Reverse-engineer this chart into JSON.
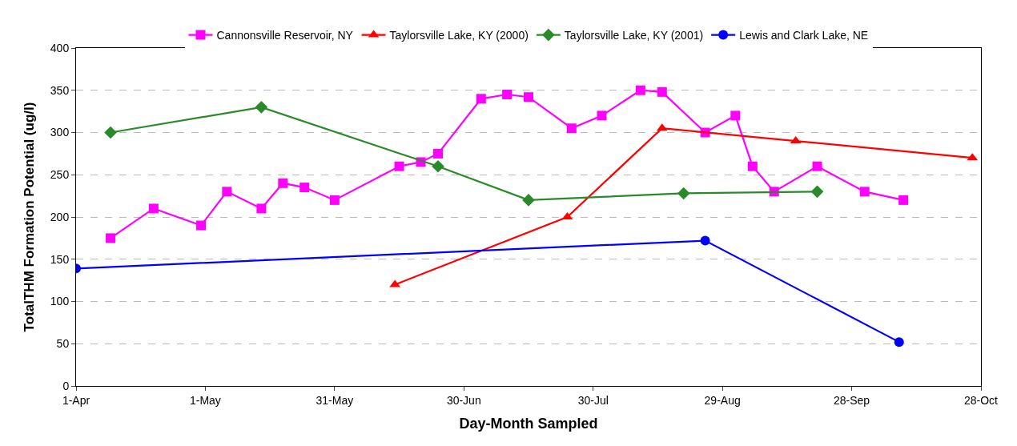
{
  "chart_data": {
    "type": "line",
    "xlabel": "Day-Month Sampled",
    "ylabel": "TotalTHM Formation Potential (ug/l)",
    "xlim": [
      "--04-01",
      "--10-28"
    ],
    "xticks": [
      {
        "value": "--04-01",
        "label": "1-Apr"
      },
      {
        "value": "--05-01",
        "label": "1-May"
      },
      {
        "value": "--05-31",
        "label": "31-May"
      },
      {
        "value": "--06-30",
        "label": "30-Jun"
      },
      {
        "value": "--07-30",
        "label": "30-Jul"
      },
      {
        "value": "--08-29",
        "label": "29-Aug"
      },
      {
        "value": "--09-28",
        "label": "28-Sep"
      },
      {
        "value": "--10-28",
        "label": "28-Oct"
      }
    ],
    "ylim": [
      0,
      400
    ],
    "yticks": [
      0,
      50,
      100,
      150,
      200,
      250,
      300,
      350,
      400
    ],
    "grid": "y",
    "legend": "top",
    "series": [
      {
        "name": "Cannonsville Reservoir, NY",
        "color": "#ff00ff",
        "marker": "square",
        "x": [
          "--04-09",
          "--04-19",
          "--04-30",
          "--05-06",
          "--05-14",
          "--05-19",
          "--05-24",
          "--05-31",
          "--06-15",
          "--06-20",
          "--06-24",
          "--07-04",
          "--07-10",
          "--07-15",
          "--07-25",
          "--08-01",
          "--08-10",
          "--08-15",
          "--08-25",
          "--09-01",
          "--09-05",
          "--09-10",
          "--09-20",
          "--10-01",
          "--10-10"
        ],
        "values": [
          175,
          210,
          190,
          230,
          210,
          240,
          235,
          220,
          260,
          265,
          275,
          340,
          345,
          342,
          305,
          320,
          350,
          348,
          300,
          320,
          260,
          230,
          260,
          230,
          220
        ]
      },
      {
        "name": "Taylorsville Lake, KY (2000)",
        "color": "#ff0000",
        "marker": "triangle",
        "x": [
          "--06-14",
          "--07-24",
          "--08-15",
          "--09-15",
          "--10-26"
        ],
        "values": [
          120,
          200,
          305,
          290,
          270
        ]
      },
      {
        "name": "Taylorsville Lake, KY (2001)",
        "color": "#2a8a2a",
        "marker": "diamond",
        "x": [
          "--04-09",
          "--05-14",
          "--06-24",
          "--07-15",
          "--08-20",
          "--09-20"
        ],
        "values": [
          300,
          330,
          260,
          220,
          228,
          230
        ]
      },
      {
        "name": "Lewis and Clark Lake, NE",
        "color": "#0000ff",
        "marker": "circle",
        "x": [
          "--04-01",
          "--08-25",
          "--10-09"
        ],
        "values": [
          139,
          172,
          52
        ]
      }
    ]
  }
}
